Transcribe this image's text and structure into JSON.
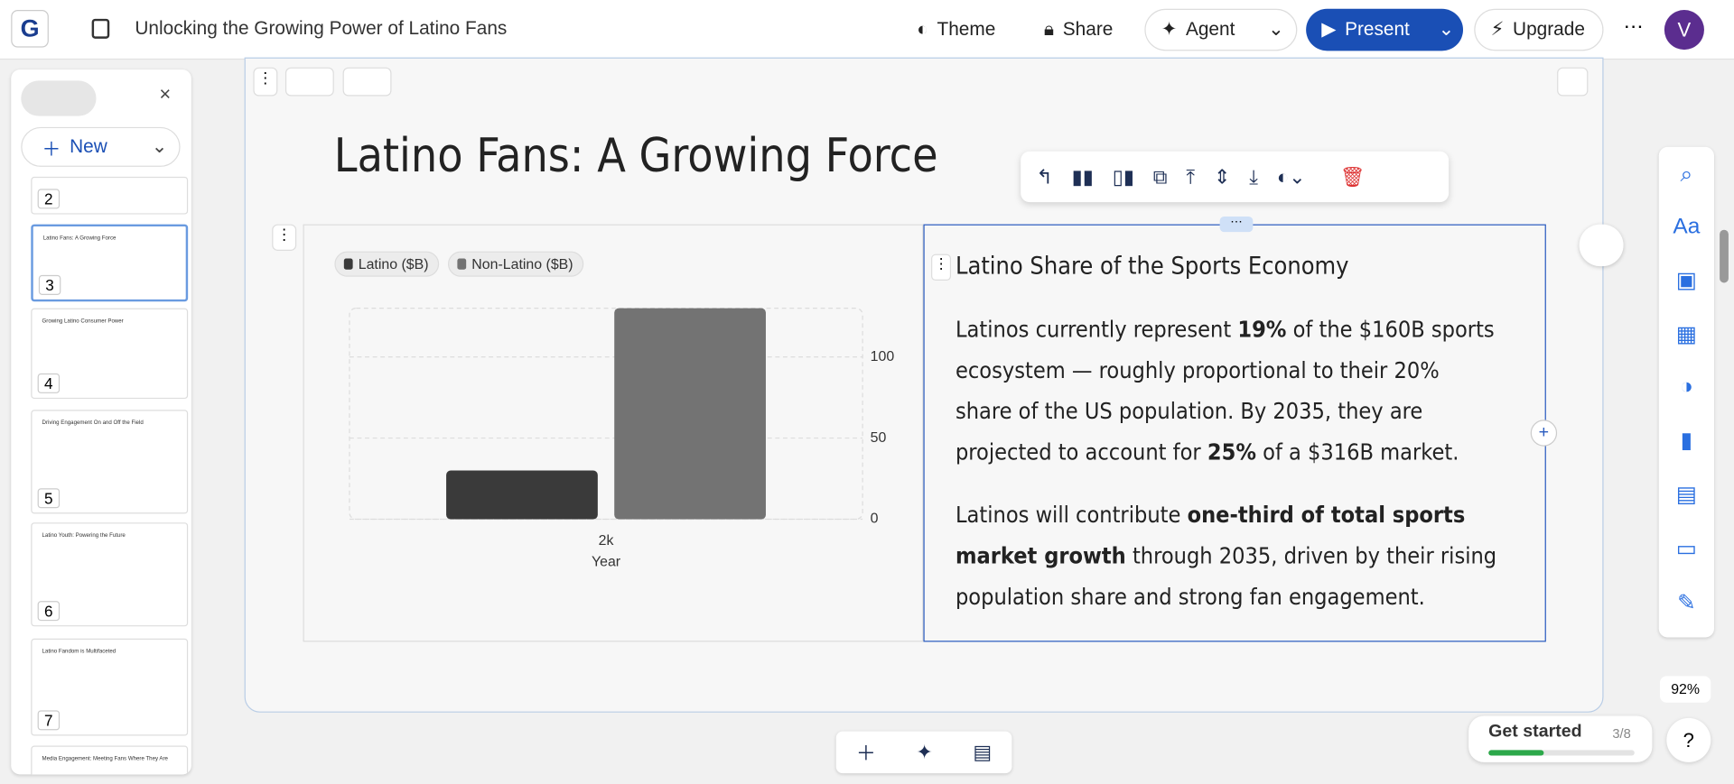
{
  "header": {
    "logo": "G",
    "title": "Unlocking the Growing Power of Latino Fans",
    "buttons": [
      "Theme",
      "Share",
      "Agent",
      "Present",
      "Upgrade"
    ],
    "avatar": "V"
  },
  "sidebar": {
    "new_button": "New",
    "slides": [
      {
        "number": "2"
      },
      {
        "number": "3",
        "title": "Latino Fans: A Growing Force"
      },
      {
        "number": "4",
        "title": "Growing Latino Consumer Power"
      },
      {
        "number": "5",
        "title": "Driving Engagement On and Off the Field"
      },
      {
        "number": "6",
        "title": "Latino Youth: Powering the Future"
      },
      {
        "number": "7",
        "title": "Latino Fandom is Multifaceted"
      },
      {
        "title": "Media Engagement: Meeting Fans Where They Are"
      }
    ]
  },
  "slide": {
    "title": "Latino Fans: A Growing Force",
    "panel": {
      "heading": "Latino Share of the Sports Economy",
      "paragraphs": [
        [
          {
            "text": "Latinos currently represent ",
            "bold": false
          },
          {
            "text": "19%",
            "bold": true
          },
          {
            "text": " of the $160B sports ecosystem — roughly proportional to their 20% share of the US population. By 2035, they are projected to account for ",
            "bold": false
          },
          {
            "text": "25%",
            "bold": true
          },
          {
            "text": " of a $316B market.",
            "bold": false
          }
        ],
        [
          {
            "text": "Latinos will contribute ",
            "bold": false
          },
          {
            "text": "one-third of total sports market growth",
            "bold": true
          },
          {
            "text": " through 2035, driven by their rising population share and strong fan engagement.",
            "bold": false
          }
        ]
      ]
    }
  },
  "chart_data": {
    "type": "bar",
    "categories": [
      "2k"
    ],
    "x_label": "Year",
    "series": [
      {
        "name": "Latino ($B)",
        "color": "#3a3a3a",
        "values": [
          30
        ]
      },
      {
        "name": "Non-Latino ($B)",
        "color": "#737373",
        "values": [
          130
        ]
      }
    ],
    "ylim": [
      0,
      130
    ],
    "yticks": [
      0,
      50,
      100
    ],
    "grid": true
  },
  "footer": {
    "zoom": "92%",
    "get_started": "Get started",
    "progress": "3/8",
    "help": "?"
  }
}
